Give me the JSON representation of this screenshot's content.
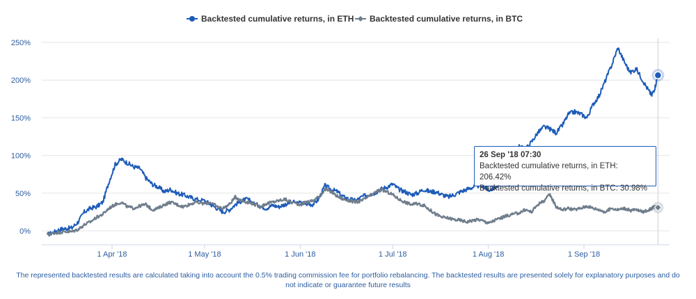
{
  "chart_data": {
    "type": "line",
    "title": "",
    "xlabel": "",
    "ylabel": "",
    "ylim": [
      -10,
      260
    ],
    "y_ticks": [
      "250%",
      "200%",
      "150%",
      "100%",
      "50%",
      "0%"
    ],
    "y_tick_values": [
      250,
      200,
      150,
      100,
      50,
      0
    ],
    "x_ticks": [
      "1 Apr '18",
      "1 May '18",
      "1 Jun '18",
      "1 Jul '18",
      "1 Aug '18",
      "1 Sep '18"
    ],
    "x_tick_days": [
      0,
      30,
      61,
      91,
      122,
      153
    ],
    "x_range_days": [
      -21,
      178
    ],
    "legend_position": "top-center",
    "series": [
      {
        "name": "Backtested cumulative returns, in ETH",
        "color": "#1e5bb8",
        "points": [
          [
            -21,
            -5
          ],
          [
            -19,
            -2
          ],
          [
            -17,
            2
          ],
          [
            -15,
            3
          ],
          [
            -13,
            4
          ],
          [
            -11,
            12
          ],
          [
            -9,
            25
          ],
          [
            -7,
            30
          ],
          [
            -5,
            32
          ],
          [
            -3,
            38
          ],
          [
            -1,
            65
          ],
          [
            1,
            88
          ],
          [
            3,
            95
          ],
          [
            5,
            90
          ],
          [
            7,
            85
          ],
          [
            9,
            83
          ],
          [
            11,
            70
          ],
          [
            13,
            62
          ],
          [
            15,
            58
          ],
          [
            17,
            52
          ],
          [
            19,
            55
          ],
          [
            21,
            50
          ],
          [
            23,
            48
          ],
          [
            25,
            45
          ],
          [
            27,
            42
          ],
          [
            30,
            40
          ],
          [
            32,
            35
          ],
          [
            34,
            30
          ],
          [
            36,
            25
          ],
          [
            38,
            28
          ],
          [
            40,
            35
          ],
          [
            42,
            40
          ],
          [
            44,
            42
          ],
          [
            46,
            36
          ],
          [
            48,
            33
          ],
          [
            50,
            30
          ],
          [
            52,
            34
          ],
          [
            54,
            32
          ],
          [
            56,
            35
          ],
          [
            58,
            38
          ],
          [
            61,
            37
          ],
          [
            63,
            36
          ],
          [
            65,
            35
          ],
          [
            67,
            42
          ],
          [
            69,
            60
          ],
          [
            71,
            55
          ],
          [
            73,
            52
          ],
          [
            75,
            45
          ],
          [
            77,
            42
          ],
          [
            79,
            40
          ],
          [
            81,
            45
          ],
          [
            83,
            48
          ],
          [
            85,
            50
          ],
          [
            87,
            55
          ],
          [
            89,
            58
          ],
          [
            91,
            62
          ],
          [
            93,
            55
          ],
          [
            95,
            52
          ],
          [
            97,
            48
          ],
          [
            99,
            50
          ],
          [
            101,
            55
          ],
          [
            103,
            52
          ],
          [
            105,
            52
          ],
          [
            107,
            48
          ],
          [
            109,
            45
          ],
          [
            111,
            48
          ],
          [
            113,
            52
          ],
          [
            115,
            55
          ],
          [
            117,
            58
          ],
          [
            119,
            60
          ],
          [
            121,
            58
          ],
          [
            122,
            54
          ],
          [
            124,
            57
          ],
          [
            126,
            62
          ],
          [
            128,
            78
          ],
          [
            130,
            92
          ],
          [
            132,
            112
          ],
          [
            134,
            108
          ],
          [
            136,
            118
          ],
          [
            138,
            130
          ],
          [
            140,
            138
          ],
          [
            142,
            135
          ],
          [
            144,
            130
          ],
          [
            146,
            140
          ],
          [
            148,
            155
          ],
          [
            150,
            158
          ],
          [
            152,
            155
          ],
          [
            154,
            150
          ],
          [
            156,
            168
          ],
          [
            158,
            180
          ],
          [
            160,
            200
          ],
          [
            162,
            220
          ],
          [
            164,
            243
          ],
          [
            166,
            225
          ],
          [
            168,
            210
          ],
          [
            170,
            215
          ],
          [
            172,
            200
          ],
          [
            174,
            186
          ],
          [
            175,
            180
          ],
          [
            176,
            190
          ],
          [
            177,
            206.42
          ]
        ]
      },
      {
        "name": "Backtested cumulative returns, in BTC",
        "color": "#6f7d8c",
        "points": [
          [
            -21,
            -5
          ],
          [
            -19,
            -3
          ],
          [
            -17,
            -2
          ],
          [
            -15,
            -1
          ],
          [
            -13,
            -1
          ],
          [
            -11,
            2
          ],
          [
            -9,
            8
          ],
          [
            -7,
            12
          ],
          [
            -5,
            18
          ],
          [
            -3,
            22
          ],
          [
            -1,
            30
          ],
          [
            1,
            35
          ],
          [
            3,
            38
          ],
          [
            5,
            32
          ],
          [
            7,
            30
          ],
          [
            9,
            33
          ],
          [
            11,
            35
          ],
          [
            13,
            28
          ],
          [
            15,
            30
          ],
          [
            17,
            35
          ],
          [
            19,
            38
          ],
          [
            21,
            35
          ],
          [
            23,
            32
          ],
          [
            25,
            35
          ],
          [
            27,
            38
          ],
          [
            30,
            36
          ],
          [
            32,
            38
          ],
          [
            34,
            32
          ],
          [
            36,
            30
          ],
          [
            38,
            35
          ],
          [
            40,
            45
          ],
          [
            42,
            40
          ],
          [
            44,
            38
          ],
          [
            46,
            36
          ],
          [
            48,
            32
          ],
          [
            50,
            36
          ],
          [
            52,
            38
          ],
          [
            54,
            40
          ],
          [
            56,
            42
          ],
          [
            58,
            38
          ],
          [
            61,
            35
          ],
          [
            63,
            38
          ],
          [
            65,
            40
          ],
          [
            67,
            45
          ],
          [
            69,
            55
          ],
          [
            71,
            52
          ],
          [
            73,
            46
          ],
          [
            75,
            42
          ],
          [
            77,
            40
          ],
          [
            79,
            38
          ],
          [
            81,
            40
          ],
          [
            83,
            45
          ],
          [
            85,
            50
          ],
          [
            87,
            55
          ],
          [
            89,
            52
          ],
          [
            91,
            48
          ],
          [
            93,
            42
          ],
          [
            95,
            38
          ],
          [
            97,
            35
          ],
          [
            99,
            36
          ],
          [
            101,
            34
          ],
          [
            103,
            28
          ],
          [
            105,
            22
          ],
          [
            107,
            18
          ],
          [
            109,
            17
          ],
          [
            111,
            15
          ],
          [
            113,
            14
          ],
          [
            115,
            12
          ],
          [
            117,
            14
          ],
          [
            119,
            15
          ],
          [
            121,
            12
          ],
          [
            122,
            10
          ],
          [
            124,
            14
          ],
          [
            126,
            17
          ],
          [
            128,
            20
          ],
          [
            130,
            22
          ],
          [
            132,
            24
          ],
          [
            134,
            28
          ],
          [
            136,
            25
          ],
          [
            138,
            35
          ],
          [
            140,
            40
          ],
          [
            142,
            48
          ],
          [
            144,
            32
          ],
          [
            146,
            28
          ],
          [
            148,
            30
          ],
          [
            150,
            28
          ],
          [
            152,
            30
          ],
          [
            154,
            33
          ],
          [
            156,
            30
          ],
          [
            158,
            28
          ],
          [
            160,
            25
          ],
          [
            162,
            30
          ],
          [
            164,
            28
          ],
          [
            166,
            30
          ],
          [
            168,
            27
          ],
          [
            170,
            28
          ],
          [
            172,
            25
          ],
          [
            174,
            28
          ],
          [
            175,
            30
          ],
          [
            176,
            32
          ],
          [
            177,
            30.98
          ]
        ]
      }
    ],
    "tooltip": {
      "title": "26 Sep '18 07:30",
      "lines": [
        "Backtested cumulative returns, in ETH: 206.42%",
        "Backtested cumulative returns, in BTC: 30.98%"
      ]
    }
  },
  "disclaimer": {
    "line1": "The represented backtested results are calculated taking into account the 0.5% trading commission fee for portfolio rebalancing. The backtested results are presented solely for explanatory purposes and do",
    "line2": "not indicate or guarantee future results"
  }
}
